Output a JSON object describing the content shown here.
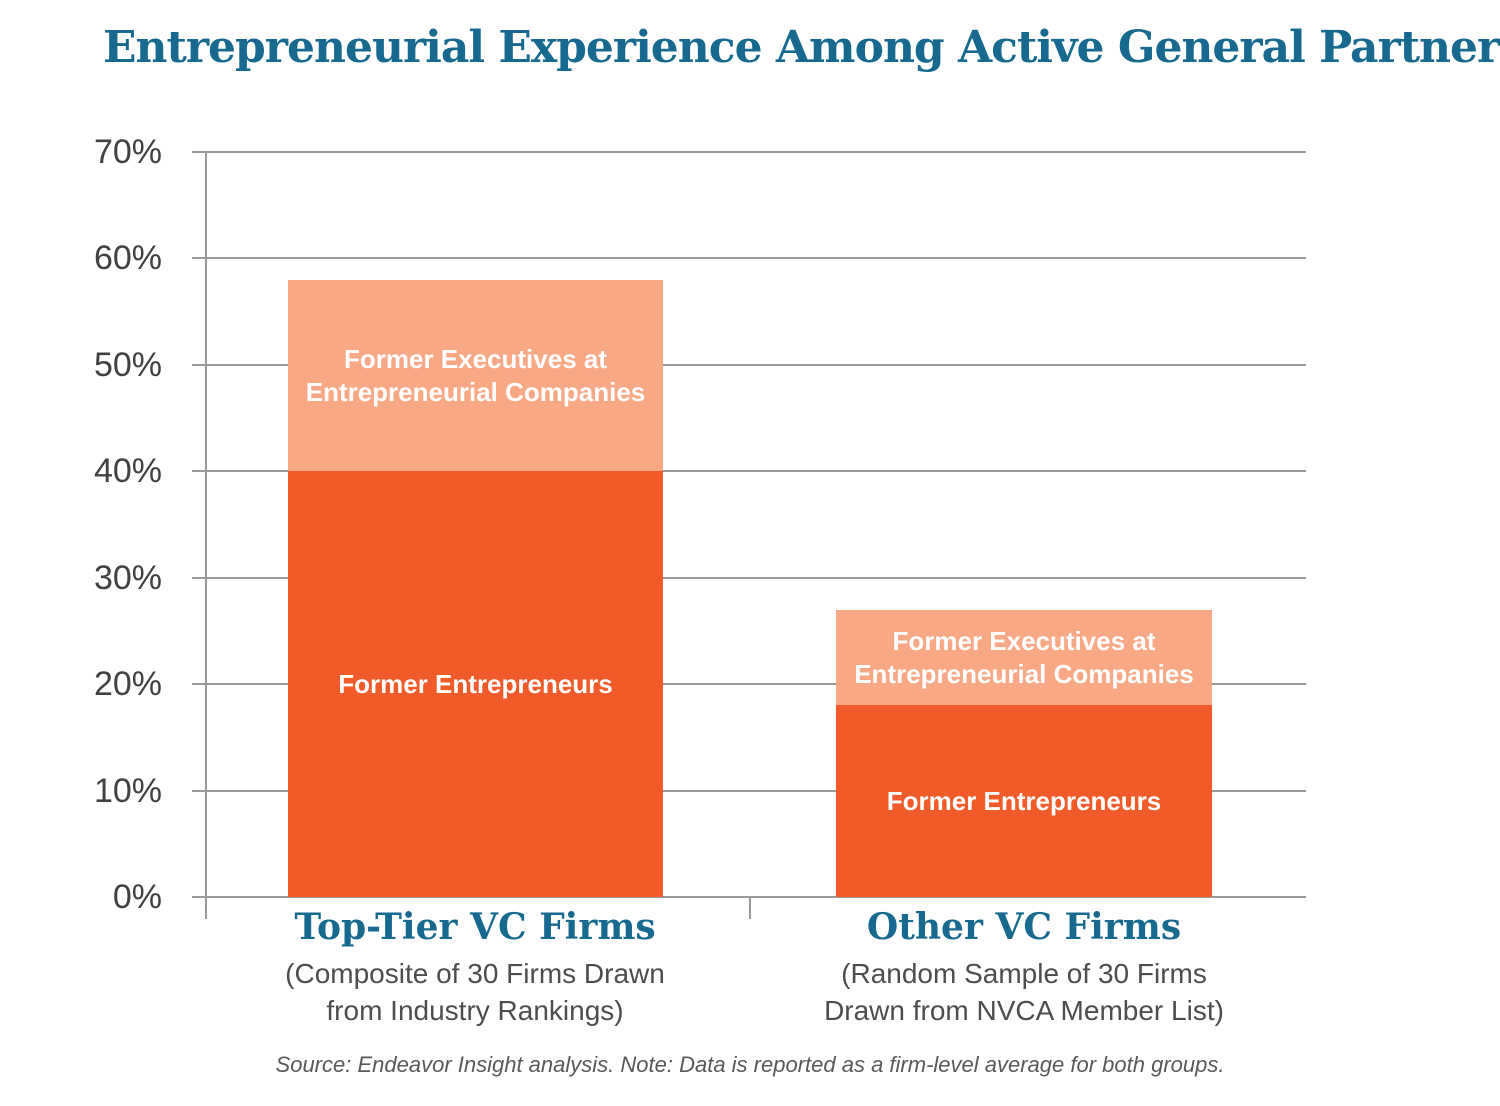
{
  "chart_data": {
    "type": "bar",
    "stacked": true,
    "title": "Entrepreneurial Experience Among Active General Partners",
    "categories": [
      "Top-Tier VC Firms",
      "Other VC Firms"
    ],
    "category_subtitles": [
      "(Composite of 30 Firms Drawn\nfrom Industry Rankings)",
      "(Random Sample of 30 Firms\nDrawn from NVCA Member List)"
    ],
    "series": [
      {
        "name": "Former Entrepreneurs",
        "values": [
          40,
          18
        ],
        "color": "#f15a29"
      },
      {
        "name": "Former Executives at Entrepreneurial Companies",
        "values": [
          18,
          9
        ],
        "color": "#f9a885"
      }
    ],
    "totals": [
      58,
      27
    ],
    "ylim": [
      0,
      70
    ],
    "yticks": [
      "0%",
      "10%",
      "20%",
      "30%",
      "40%",
      "50%",
      "60%",
      "70%"
    ],
    "grid": true,
    "legend_position": "none",
    "colors": {
      "title": "#17698f",
      "gridline": "#98999c",
      "axis_label": "#414042",
      "subtitle_text": "#4d4d4f",
      "note_text": "#58595b"
    },
    "note": "Source: Endeavor Insight analysis. Note: Data is reported as a firm-level average for both groups."
  }
}
